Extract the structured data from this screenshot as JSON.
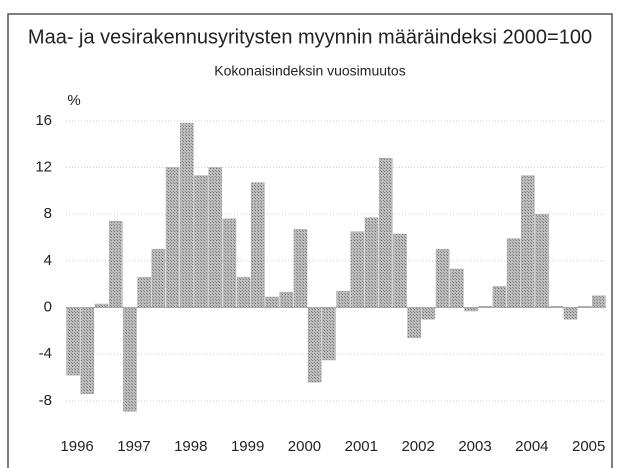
{
  "chart_data": {
    "type": "bar",
    "title": "Maa- ja vesirakennusyritysten myynnin määräindeksi 2000=100",
    "subtitle": "Kokonaisindeksin vuosimuutos",
    "y_label": "%",
    "categories": [
      "1996",
      null,
      null,
      null,
      "1997",
      null,
      null,
      null,
      "1998",
      null,
      null,
      null,
      "1999",
      null,
      null,
      null,
      "2000",
      null,
      null,
      null,
      "2001",
      null,
      null,
      null,
      "2002",
      null,
      null,
      null,
      "2003",
      null,
      null,
      null,
      "2004",
      null,
      null,
      null,
      "2005",
      null
    ],
    "values": [
      -5.8,
      -7.4,
      0.3,
      7.4,
      -8.9,
      2.6,
      5.0,
      12.0,
      15.8,
      11.3,
      12.0,
      7.6,
      2.6,
      10.7,
      0.9,
      1.3,
      6.7,
      -6.4,
      -4.5,
      1.4,
      6.5,
      7.7,
      12.8,
      6.3,
      -2.6,
      -1.0,
      5.0,
      3.3,
      -0.3,
      0.1,
      1.8,
      5.9,
      11.3,
      8.0,
      0.1,
      -1.0,
      0.1,
      1.0
    ],
    "color": "#a8a8a8",
    "ylim": [
      -10.5,
      16.5
    ],
    "yticks": [
      -8,
      -4,
      0,
      4,
      8,
      12,
      16
    ],
    "grid": true
  }
}
